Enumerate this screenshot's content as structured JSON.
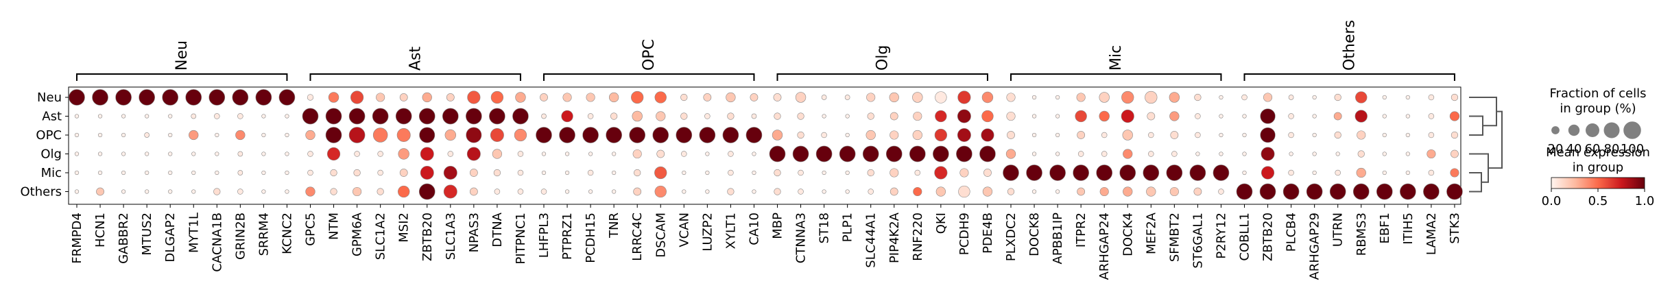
{
  "chart_data": {
    "type": "dotplot",
    "rows": [
      "Neu",
      "Ast",
      "OPC",
      "Olg",
      "Mic",
      "Others"
    ],
    "groups": [
      {
        "name": "Neu",
        "genes": [
          "FRMPD4",
          "HCN1",
          "GABBR2",
          "MTUS2",
          "DLGAP2",
          "MYT1L",
          "CACNA1B",
          "GRIN2B",
          "SRRM4",
          "KCNC2"
        ]
      },
      {
        "name": "Ast",
        "genes": [
          "GPC5",
          "NTM",
          "GPM6A",
          "SLC1A2",
          "MSI2",
          "ZBTB20",
          "SLC1A3",
          "NPAS3",
          "DTNA",
          "PITPNC1"
        ]
      },
      {
        "name": "OPC",
        "genes": [
          "LHFPL3",
          "PTPRZ1",
          "PCDH15",
          "TNR",
          "LRRC4C",
          "DSCAM",
          "VCAN",
          "LUZP2",
          "XYLT1",
          "CA10"
        ]
      },
      {
        "name": "Olg",
        "genes": [
          "MBP",
          "CTNNA3",
          "ST18",
          "PLP1",
          "SLC44A1",
          "PIP4K2A",
          "RNF220",
          "QKI",
          "PCDH9",
          "PDE4B"
        ]
      },
      {
        "name": "Mic",
        "genes": [
          "PLXDC2",
          "DOCK8",
          "APBB1IP",
          "ITPR2",
          "ARHGAP24",
          "DOCK4",
          "MEF2A",
          "SFMBT2",
          "ST6GAL1",
          "P2RY12"
        ]
      },
      {
        "name": "Others",
        "genes": [
          "COBLL1",
          "ZBTB20",
          "PLCB4",
          "ARHGAP29",
          "UTRN",
          "RBMS3",
          "EBF1",
          "ITIH5",
          "LAMA2",
          "STK3"
        ]
      }
    ],
    "fraction": {
      "Neu": [
        0.85,
        0.85,
        0.85,
        0.85,
        0.85,
        0.85,
        0.85,
        0.85,
        0.85,
        0.85,
        0.12,
        0.35,
        0.55,
        0.25,
        0.2,
        0.3,
        0.2,
        0.55,
        0.5,
        0.35,
        0.2,
        0.25,
        0.25,
        0.3,
        0.5,
        0.45,
        0.15,
        0.2,
        0.3,
        0.2,
        0.2,
        0.35,
        0.08,
        0.08,
        0.25,
        0.3,
        0.35,
        0.45,
        0.55,
        0.4,
        0.25,
        0.05,
        0.05,
        0.25,
        0.35,
        0.5,
        0.5,
        0.35,
        0.15,
        0.05,
        0.1,
        0.25,
        0.08,
        0.05,
        0.15,
        0.45,
        0.05,
        0.05,
        0.1,
        0.15
      ],
      "Ast": [
        0.05,
        0.05,
        0.05,
        0.05,
        0.05,
        0.08,
        0.1,
        0.1,
        0.05,
        0.05,
        0.85,
        0.85,
        0.85,
        0.85,
        0.85,
        0.85,
        0.85,
        0.85,
        0.85,
        0.85,
        0.08,
        0.45,
        0.1,
        0.15,
        0.35,
        0.3,
        0.15,
        0.1,
        0.15,
        0.08,
        0.15,
        0.15,
        0.05,
        0.05,
        0.15,
        0.2,
        0.25,
        0.45,
        0.6,
        0.45,
        0.25,
        0.05,
        0.05,
        0.45,
        0.35,
        0.55,
        0.2,
        0.3,
        0.1,
        0.05,
        0.05,
        0.75,
        0.1,
        0.05,
        0.2,
        0.5,
        0.05,
        0.05,
        0.1,
        0.3
      ],
      "OPC": [
        0.05,
        0.05,
        0.05,
        0.08,
        0.05,
        0.3,
        0.05,
        0.3,
        0.05,
        0.05,
        0.3,
        0.85,
        0.85,
        0.7,
        0.6,
        0.8,
        0.4,
        0.8,
        0.6,
        0.5,
        0.85,
        0.85,
        0.85,
        0.85,
        0.85,
        0.85,
        0.85,
        0.85,
        0.85,
        0.85,
        0.35,
        0.15,
        0.1,
        0.05,
        0.3,
        0.25,
        0.3,
        0.5,
        0.6,
        0.55,
        0.2,
        0.05,
        0.05,
        0.2,
        0.1,
        0.35,
        0.1,
        0.2,
        0.1,
        0.05,
        0.05,
        0.75,
        0.1,
        0.05,
        0.15,
        0.25,
        0.05,
        0.05,
        0.1,
        0.15
      ],
      "Olg": [
        0.05,
        0.05,
        0.05,
        0.05,
        0.05,
        0.05,
        0.05,
        0.08,
        0.05,
        0.05,
        0.1,
        0.55,
        0.1,
        0.1,
        0.4,
        0.6,
        0.1,
        0.6,
        0.3,
        0.1,
        0.05,
        0.05,
        0.05,
        0.05,
        0.25,
        0.2,
        0.1,
        0.05,
        0.1,
        0.05,
        0.85,
        0.85,
        0.85,
        0.85,
        0.85,
        0.85,
        0.85,
        0.85,
        0.85,
        0.85,
        0.3,
        0.05,
        0.05,
        0.1,
        0.1,
        0.3,
        0.1,
        0.1,
        0.05,
        0.05,
        0.05,
        0.6,
        0.05,
        0.05,
        0.05,
        0.15,
        0.05,
        0.05,
        0.25,
        0.2
      ],
      "Mic": [
        0.05,
        0.05,
        0.05,
        0.05,
        0.05,
        0.05,
        0.05,
        0.08,
        0.05,
        0.05,
        0.1,
        0.15,
        0.15,
        0.1,
        0.2,
        0.6,
        0.6,
        0.2,
        0.15,
        0.1,
        0.05,
        0.05,
        0.1,
        0.05,
        0.15,
        0.5,
        0.05,
        0.05,
        0.1,
        0.05,
        0.15,
        0.1,
        0.05,
        0.05,
        0.15,
        0.25,
        0.1,
        0.55,
        0.25,
        0.2,
        0.85,
        0.85,
        0.85,
        0.85,
        0.85,
        0.85,
        0.85,
        0.85,
        0.85,
        0.85,
        0.05,
        0.55,
        0.1,
        0.05,
        0.1,
        0.3,
        0.05,
        0.05,
        0.1,
        0.25
      ],
      "Others": [
        0.05,
        0.2,
        0.05,
        0.05,
        0.05,
        0.05,
        0.15,
        0.1,
        0.05,
        0.05,
        0.3,
        0.15,
        0.25,
        0.15,
        0.45,
        0.85,
        0.6,
        0.2,
        0.1,
        0.1,
        0.1,
        0.05,
        0.05,
        0.05,
        0.2,
        0.45,
        0.05,
        0.05,
        0.15,
        0.05,
        0.15,
        0.1,
        0.05,
        0.05,
        0.1,
        0.2,
        0.25,
        0.3,
        0.45,
        0.3,
        0.15,
        0.05,
        0.05,
        0.2,
        0.25,
        0.3,
        0.3,
        0.25,
        0.2,
        0.1,
        0.85,
        0.85,
        0.85,
        0.85,
        0.85,
        0.85,
        0.85,
        0.85,
        0.85,
        0.85
      ]
    },
    "expression": {
      "Neu": [
        1,
        1,
        1,
        1,
        1,
        1,
        1,
        1,
        1,
        1,
        0.05,
        0.45,
        0.6,
        0.2,
        0.15,
        0.3,
        0.15,
        0.55,
        0.5,
        0.3,
        0.15,
        0.2,
        0.2,
        0.25,
        0.5,
        0.5,
        0.1,
        0.15,
        0.2,
        0.15,
        0.1,
        0.15,
        0.05,
        0.05,
        0.15,
        0.2,
        0.15,
        0.05,
        0.65,
        0.4,
        0.1,
        0.02,
        0.02,
        0.2,
        0.15,
        0.4,
        0.15,
        0.3,
        0.1,
        0.02,
        0.05,
        0.2,
        0.05,
        0.02,
        0.1,
        0.6,
        0.02,
        0.02,
        0.05,
        0.1
      ],
      "Ast": [
        0.02,
        0.02,
        0.02,
        0.02,
        0.02,
        0.05,
        0.05,
        0.05,
        0.02,
        0.02,
        1,
        1,
        1,
        1,
        1,
        1,
        1,
        1,
        1,
        1,
        0.05,
        0.75,
        0.05,
        0.1,
        0.25,
        0.2,
        0.1,
        0.05,
        0.1,
        0.05,
        0.1,
        0.1,
        0.02,
        0.02,
        0.1,
        0.15,
        0.15,
        0.7,
        0.9,
        0.5,
        0.1,
        0.02,
        0.02,
        0.6,
        0.5,
        0.75,
        0.1,
        0.35,
        0.05,
        0.02,
        0.02,
        1,
        0.05,
        0.02,
        0.3,
        0.8,
        0.02,
        0.02,
        0.05,
        0.5
      ],
      "OPC": [
        0.02,
        0.02,
        0.02,
        0.05,
        0.02,
        0.35,
        0.02,
        0.4,
        0.02,
        0.02,
        0.3,
        1,
        0.8,
        0.45,
        0.45,
        1,
        0.3,
        0.9,
        0.6,
        0.4,
        1,
        1,
        1,
        1,
        1,
        1,
        1,
        1,
        1,
        1,
        0.3,
        0.1,
        0.05,
        0.02,
        0.2,
        0.15,
        0.15,
        0.65,
        0.85,
        0.85,
        0.1,
        0.02,
        0.02,
        0.15,
        0.05,
        0.2,
        0.05,
        0.1,
        0.05,
        0.02,
        0.02,
        1,
        0.05,
        0.02,
        0.1,
        0.15,
        0.02,
        0.02,
        0.05,
        0.1
      ],
      "Olg": [
        0.02,
        0.02,
        0.02,
        0.02,
        0.02,
        0.02,
        0.02,
        0.05,
        0.02,
        0.02,
        0.05,
        0.7,
        0.05,
        0.05,
        0.35,
        0.75,
        0.05,
        0.8,
        0.2,
        0.05,
        0.02,
        0.02,
        0.02,
        0.02,
        0.15,
        0.1,
        0.05,
        0.02,
        0.05,
        0.02,
        1,
        1,
        1,
        1,
        1,
        1,
        1,
        1,
        1,
        1,
        0.3,
        0.02,
        0.02,
        0.05,
        0.05,
        0.4,
        0.05,
        0.05,
        0.02,
        0.02,
        0.02,
        0.9,
        0.02,
        0.02,
        0.02,
        0.1,
        0.02,
        0.02,
        0.3,
        0.15
      ],
      "Mic": [
        0.02,
        0.02,
        0.02,
        0.02,
        0.02,
        0.02,
        0.02,
        0.05,
        0.02,
        0.02,
        0.05,
        0.1,
        0.1,
        0.05,
        0.15,
        0.75,
        0.85,
        0.15,
        0.1,
        0.05,
        0.02,
        0.02,
        0.05,
        0.02,
        0.1,
        0.55,
        0.02,
        0.02,
        0.05,
        0.02,
        0.1,
        0.05,
        0.02,
        0.02,
        0.1,
        0.15,
        0.05,
        0.7,
        0.15,
        0.1,
        1,
        1,
        1,
        1,
        1,
        1,
        1,
        1,
        1,
        1,
        0.02,
        0.75,
        0.05,
        0.02,
        0.05,
        0.3,
        0.02,
        0.02,
        0.05,
        0.45
      ],
      "Others": [
        0.02,
        0.2,
        0.02,
        0.02,
        0.02,
        0.02,
        0.1,
        0.05,
        0.02,
        0.02,
        0.4,
        0.1,
        0.2,
        0.1,
        0.5,
        1,
        0.7,
        0.15,
        0.05,
        0.05,
        0.05,
        0.02,
        0.02,
        0.02,
        0.15,
        0.4,
        0.02,
        0.02,
        0.1,
        0.02,
        0.1,
        0.05,
        0.02,
        0.02,
        0.05,
        0.15,
        0.5,
        0.2,
        0.1,
        0.2,
        0.1,
        0.02,
        0.02,
        0.2,
        0.3,
        0.3,
        0.2,
        0.2,
        0.15,
        0.05,
        1,
        1,
        1,
        1,
        1,
        1,
        1,
        1,
        1,
        1
      ]
    },
    "legend": {
      "size_title_line1": "Fraction of cells",
      "size_title_line2": "in group (%)",
      "size_values": [
        20,
        40,
        60,
        80,
        100
      ],
      "size_labels": [
        "20",
        "40",
        "60",
        "80",
        "100"
      ],
      "color_title_line1": "Mean expression",
      "color_title_line2": "in group",
      "color_ticks": [
        0.0,
        0.5,
        1.0
      ],
      "color_tick_labels": [
        "0.0",
        "0.5",
        "1.0"
      ],
      "colormap": "Reds",
      "colormap_stops": [
        "#fff5f0",
        "#fdbba2",
        "#fb6a4a",
        "#cb181d",
        "#67000d"
      ]
    },
    "dendrogram_order": [
      "Neu",
      [
        "Ast",
        "OPC"
      ],
      [
        "Olg",
        [
          "Mic",
          "Others"
        ]
      ]
    ]
  }
}
